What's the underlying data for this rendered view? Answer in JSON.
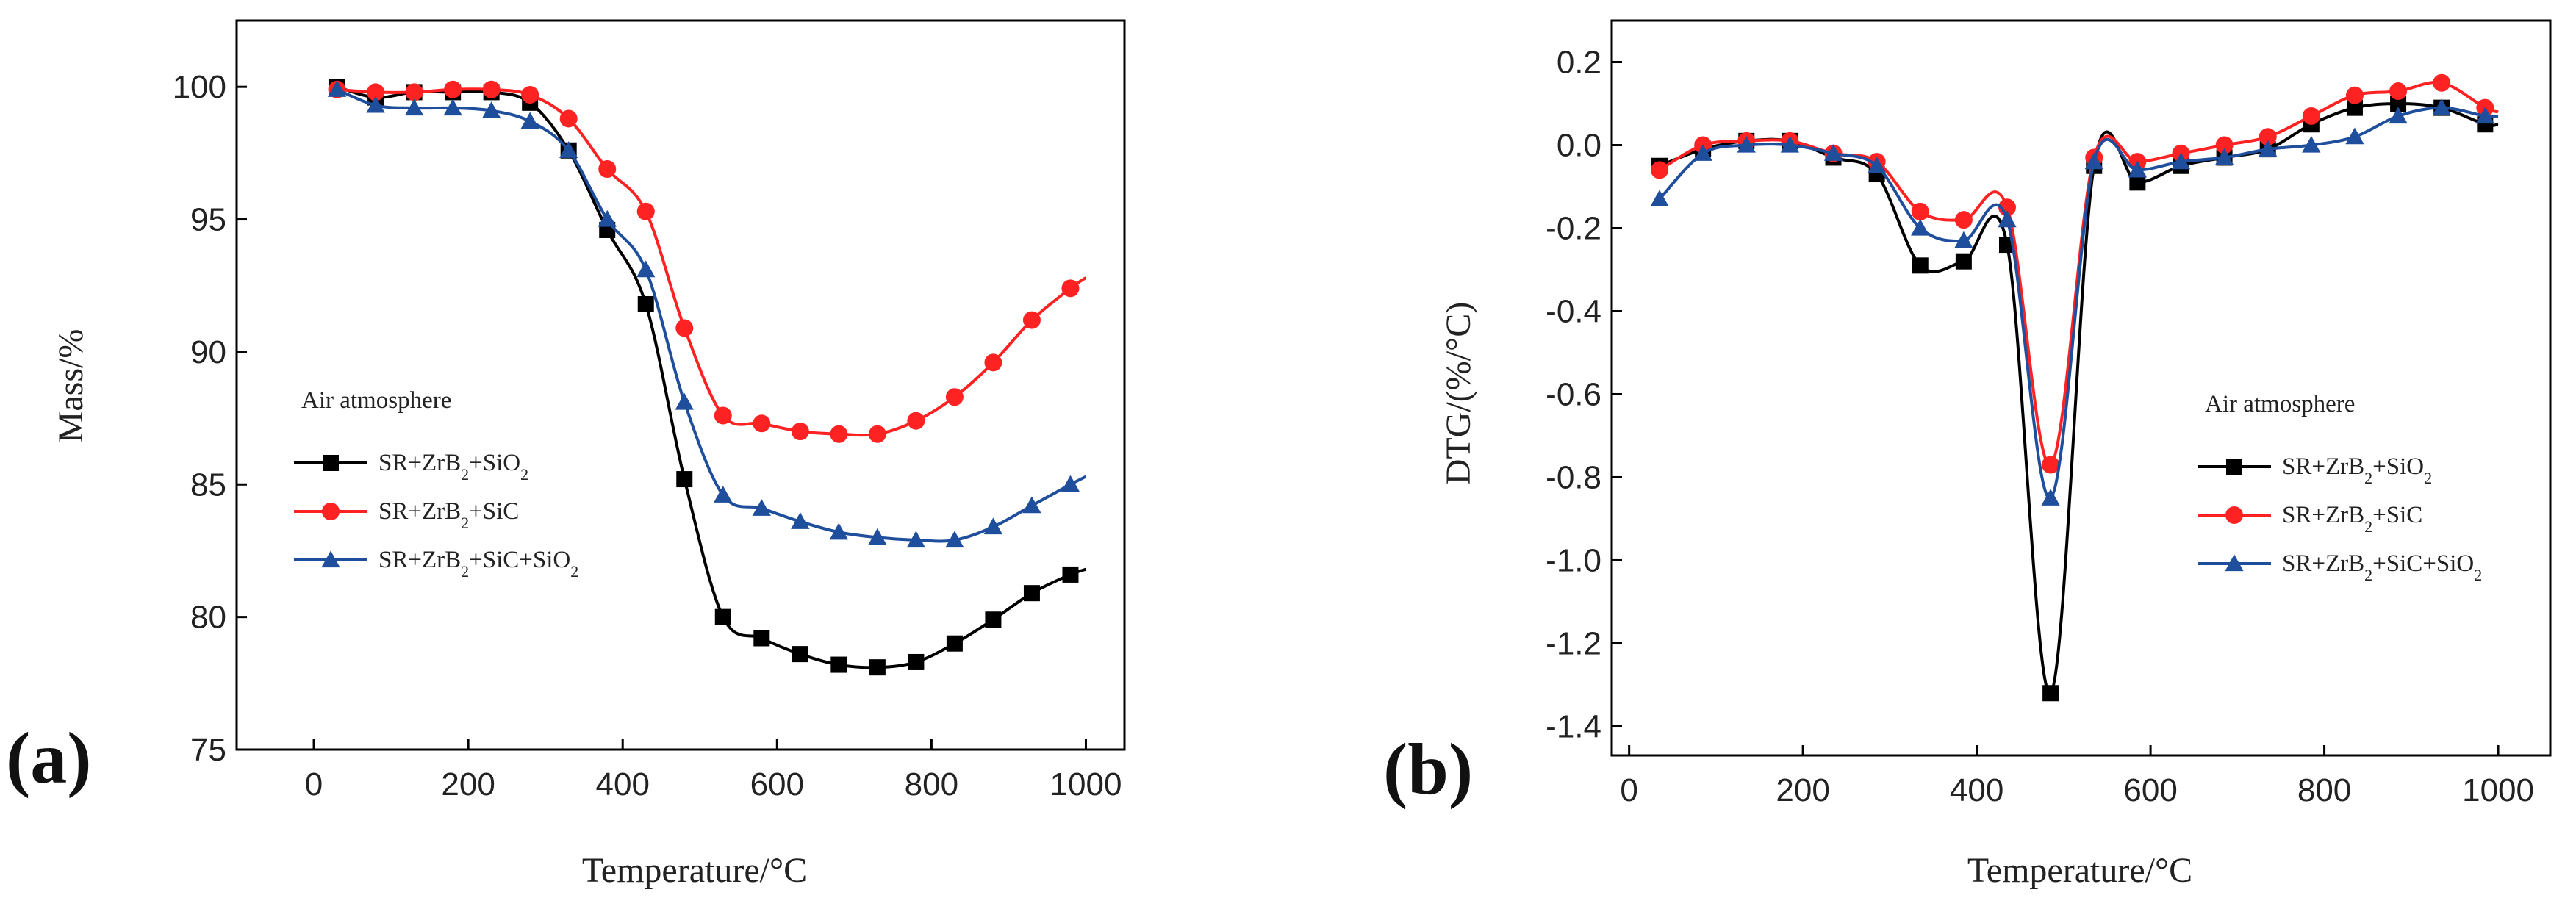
{
  "chart_data": [
    {
      "id": "a",
      "type": "line",
      "panel_label": "(a)",
      "xlabel": "Temperature/°C",
      "ylabel": "Mass/%",
      "xlim": [
        -100,
        1050
      ],
      "ylim": [
        75,
        102.5
      ],
      "xticks": [
        0,
        200,
        400,
        600,
        800,
        1000
      ],
      "yticks": [
        75,
        80,
        85,
        90,
        95,
        100
      ],
      "legend_title": "Air atmosphere",
      "legend_position": "center-left",
      "series": [
        {
          "name": "SR+ZrB₂+SiO₂",
          "name_base": "SR+ZrB",
          "name_sub1": "2",
          "name_mid": "+SiO",
          "name_sub2": "2",
          "name_tail": "",
          "color": "#000000",
          "marker": "square",
          "x": [
            30,
            80,
            130,
            180,
            230,
            280,
            330,
            380,
            430,
            480,
            530,
            580,
            630,
            680,
            730,
            780,
            830,
            880,
            930,
            980
          ],
          "y": [
            100.0,
            99.6,
            99.8,
            99.8,
            99.8,
            99.4,
            97.6,
            94.6,
            91.8,
            85.2,
            80.0,
            79.2,
            78.6,
            78.2,
            78.1,
            78.3,
            79.0,
            79.9,
            80.9,
            81.6
          ],
          "line_end": [
            1000,
            81.8
          ]
        },
        {
          "name": "SR+ZrB₂+SiC",
          "name_base": "SR+ZrB",
          "name_sub1": "2",
          "name_mid": "+SiC",
          "name_sub2": "",
          "name_tail": "",
          "color": "#ff2222",
          "marker": "circle",
          "x": [
            30,
            80,
            130,
            180,
            230,
            280,
            330,
            380,
            430,
            480,
            530,
            580,
            630,
            680,
            730,
            780,
            830,
            880,
            930,
            980
          ],
          "y": [
            99.9,
            99.8,
            99.8,
            99.9,
            99.9,
            99.7,
            98.8,
            96.9,
            95.3,
            90.9,
            87.6,
            87.3,
            87.0,
            86.9,
            86.9,
            87.4,
            88.3,
            89.6,
            91.2,
            92.4
          ],
          "line_end": [
            1000,
            92.8
          ]
        },
        {
          "name": "SR+ZrB₂+SiC+SiO₂",
          "name_base": "SR+ZrB",
          "name_sub1": "2",
          "name_mid": "+SiC+SiO",
          "name_sub2": "2",
          "name_tail": "",
          "color": "#1f4e9c",
          "marker": "triangle",
          "x": [
            30,
            80,
            130,
            180,
            230,
            280,
            330,
            380,
            430,
            480,
            530,
            580,
            630,
            680,
            730,
            780,
            830,
            880,
            930,
            980
          ],
          "y": [
            99.9,
            99.3,
            99.2,
            99.2,
            99.1,
            98.7,
            97.6,
            95.0,
            93.1,
            88.1,
            84.6,
            84.1,
            83.6,
            83.2,
            83.0,
            82.9,
            82.9,
            83.4,
            84.2,
            85.0
          ],
          "line_end": [
            1000,
            85.3
          ]
        }
      ]
    },
    {
      "id": "b",
      "type": "line",
      "panel_label": "(b)",
      "xlabel": "Temperature/°C",
      "ylabel": "DTG/(%/°C)",
      "xlim": [
        -20,
        1060
      ],
      "ylim": [
        -1.47,
        0.3
      ],
      "xticks": [
        0,
        200,
        400,
        600,
        800,
        1000
      ],
      "yticks": [
        -1.4,
        -1.2,
        -1.0,
        -0.8,
        -0.6,
        -0.4,
        -0.2,
        0.0,
        0.2
      ],
      "ytick_labels": [
        "-1.4",
        "-1.2",
        "-1.0",
        "-0.8",
        "-0.6",
        "-0.4",
        "-0.2",
        "0.0",
        "0.2"
      ],
      "legend_title": "Air atmosphere",
      "legend_position": "lower-right",
      "series": [
        {
          "name": "SR+ZrB₂+SiO₂",
          "name_base": "SR+ZrB",
          "name_sub1": "2",
          "name_mid": "+SiO",
          "name_sub2": "2",
          "name_tail": "",
          "color": "#000000",
          "marker": "square",
          "x": [
            35,
            85,
            135,
            185,
            235,
            285,
            335,
            385,
            435,
            485,
            535,
            585,
            635,
            685,
            735,
            785,
            835,
            885,
            935,
            985
          ],
          "y": [
            -0.05,
            -0.01,
            0.01,
            0.01,
            -0.03,
            -0.07,
            -0.29,
            -0.28,
            -0.24,
            -1.32,
            -0.05,
            -0.09,
            -0.05,
            -0.03,
            -0.01,
            0.05,
            0.09,
            0.1,
            0.09,
            0.05
          ],
          "line_end": [
            1000,
            0.05
          ]
        },
        {
          "name": "SR+ZrB₂+SiC",
          "name_base": "SR+ZrB",
          "name_sub1": "2",
          "name_mid": "+SiC",
          "name_sub2": "",
          "name_tail": "",
          "color": "#ff2222",
          "marker": "circle",
          "x": [
            35,
            85,
            135,
            185,
            235,
            285,
            335,
            385,
            435,
            485,
            535,
            585,
            635,
            685,
            735,
            785,
            835,
            885,
            935,
            985
          ],
          "y": [
            -0.06,
            0.0,
            0.01,
            0.01,
            -0.02,
            -0.04,
            -0.16,
            -0.18,
            -0.15,
            -0.77,
            -0.03,
            -0.04,
            -0.02,
            0.0,
            0.02,
            0.07,
            0.12,
            0.13,
            0.15,
            0.09
          ],
          "line_end": [
            1000,
            0.08
          ]
        },
        {
          "name": "SR+ZrB₂+SiC+SiO₂",
          "name_base": "SR+ZrB",
          "name_sub1": "2",
          "name_mid": "+SiC+SiO",
          "name_sub2": "2",
          "name_tail": "",
          "color": "#1f4e9c",
          "marker": "triangle",
          "x": [
            35,
            85,
            135,
            185,
            235,
            285,
            335,
            385,
            435,
            485,
            535,
            585,
            635,
            685,
            735,
            785,
            835,
            885,
            935,
            985
          ],
          "y": [
            -0.13,
            -0.02,
            0.0,
            0.0,
            -0.02,
            -0.05,
            -0.2,
            -0.23,
            -0.18,
            -0.85,
            -0.04,
            -0.06,
            -0.04,
            -0.03,
            -0.01,
            0.0,
            0.02,
            0.07,
            0.09,
            0.07
          ],
          "line_end": [
            1000,
            0.07
          ]
        }
      ]
    }
  ]
}
